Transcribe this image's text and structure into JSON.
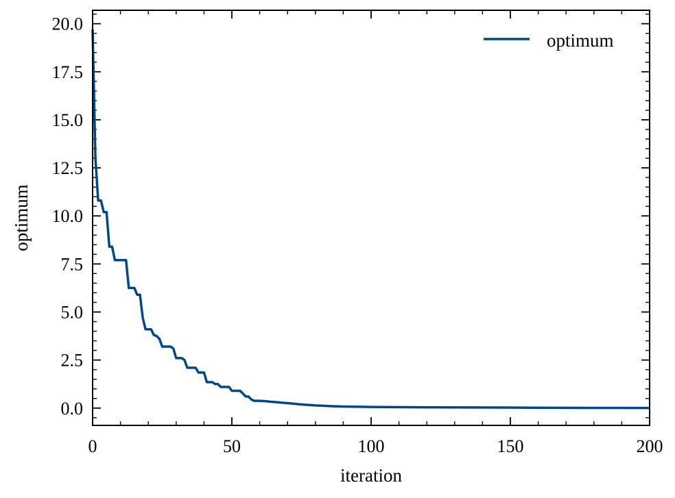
{
  "chart_data": {
    "type": "line",
    "xlabel": "iteration",
    "ylabel": "optimum",
    "xlim": [
      0,
      200
    ],
    "ylim": [
      -0.9,
      20.7
    ],
    "x_ticks": [
      0,
      50,
      100,
      150,
      200
    ],
    "x_tick_labels": [
      "0",
      "50",
      "100",
      "150",
      "200"
    ],
    "y_ticks": [
      0,
      2.5,
      5,
      7.5,
      10,
      12.5,
      15,
      17.5,
      20
    ],
    "y_tick_labels": [
      "0.0",
      "2.5",
      "5.0",
      "7.5",
      "10.0",
      "12.5",
      "15.0",
      "17.5",
      "20.0"
    ],
    "grid": false,
    "legend_position": "top-right",
    "series": [
      {
        "name": "optimum",
        "color": "#00468b",
        "x": [
          0,
          1,
          2,
          3,
          4,
          5,
          6,
          7,
          8,
          9,
          10,
          11,
          12,
          13,
          14,
          15,
          16,
          17,
          18,
          19,
          20,
          21,
          22,
          23,
          24,
          25,
          26,
          27,
          28,
          29,
          30,
          31,
          32,
          33,
          34,
          35,
          36,
          37,
          38,
          39,
          40,
          41,
          42,
          43,
          44,
          45,
          46,
          47,
          48,
          49,
          50,
          51,
          52,
          53,
          54,
          55,
          56,
          57,
          58,
          59,
          60,
          62,
          64,
          66,
          68,
          70,
          72,
          74,
          76,
          78,
          80,
          83,
          86,
          90,
          95,
          100,
          110,
          120,
          130,
          140,
          150,
          160,
          170,
          180,
          190,
          200
        ],
        "values": [
          19.7,
          13.0,
          10.8,
          10.8,
          10.2,
          10.2,
          8.4,
          8.4,
          7.7,
          7.7,
          7.7,
          7.7,
          7.7,
          6.25,
          6.25,
          6.25,
          5.9,
          5.9,
          4.7,
          4.1,
          4.1,
          4.1,
          3.8,
          3.75,
          3.6,
          3.2,
          3.2,
          3.2,
          3.2,
          3.1,
          2.6,
          2.6,
          2.6,
          2.5,
          2.1,
          2.1,
          2.1,
          2.1,
          1.85,
          1.85,
          1.85,
          1.35,
          1.35,
          1.35,
          1.25,
          1.25,
          1.1,
          1.1,
          1.1,
          1.1,
          0.9,
          0.9,
          0.9,
          0.9,
          0.75,
          0.6,
          0.6,
          0.45,
          0.38,
          0.38,
          0.38,
          0.36,
          0.33,
          0.31,
          0.28,
          0.26,
          0.23,
          0.2,
          0.18,
          0.16,
          0.14,
          0.12,
          0.1,
          0.08,
          0.07,
          0.06,
          0.05,
          0.04,
          0.035,
          0.03,
          0.025,
          0.02,
          0.015,
          0.01,
          0.008,
          0.005
        ]
      }
    ]
  }
}
